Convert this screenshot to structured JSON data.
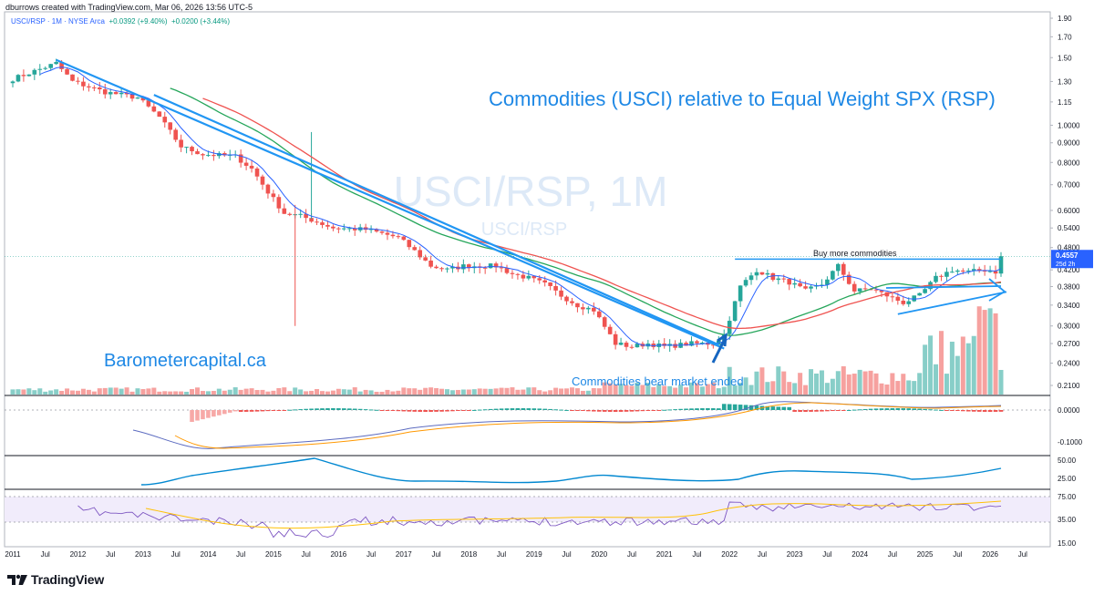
{
  "header": {
    "created_by": "dburrows created with TradingView.com, Mar 06, 2026 13:56 UTC-5",
    "legend_symbol": "USCI/RSP · 1M · NYSE Arca",
    "legend_change": "+0.0392 (+9.40%)",
    "legend_ma": "+0.0200 (+3.44%)"
  },
  "footer": {
    "brand": "TradingView",
    "logo_icon": "tradingview-logo-icon"
  },
  "colors": {
    "up": "#26a69a",
    "down": "#ef5350",
    "blue_ma": "#2962ff",
    "green_ma": "#26a65b",
    "red_ma": "#ef5350",
    "trendline": "#2196f3",
    "annotation": "#1e88e5"
  },
  "chart_data": {
    "type": "candlestick",
    "symbol": "USCI/RSP",
    "interval": "1M",
    "watermark": {
      "main": "USCI/RSP, 1M",
      "sub": "USCI/RSP"
    },
    "title": "Commodities (USCI) relative to Equal Weight SPX (RSP)",
    "brand_text": "Barometercapital.ca",
    "annotations": {
      "resistance": "Buy more commodities",
      "bottom": "Commodities bear market ended"
    },
    "y_scale": "log",
    "y_ticks": [
      "1.90",
      "1.70",
      "1.50",
      "1.30",
      "1.15",
      "1.0000",
      "0.9000",
      "0.8000",
      "0.7000",
      "0.6000",
      "0.5400",
      "0.4800",
      "0.4200",
      "0.3800",
      "0.3400",
      "0.3000",
      "0.2700",
      "0.2400",
      "0.2100"
    ],
    "last_price": "0.4557",
    "countdown": "25d 2h",
    "x_ticks": [
      "2011",
      "Jul",
      "2012",
      "Jul",
      "2013",
      "Jul",
      "2014",
      "Jul",
      "2015",
      "Jul",
      "2016",
      "Jul",
      "2017",
      "Jul",
      "2018",
      "Jul",
      "2019",
      "Jul",
      "2020",
      "Jul",
      "2021",
      "Jul",
      "2022",
      "Jul",
      "2023",
      "Jul",
      "2024",
      "Jul",
      "2025",
      "Jul",
      "2026",
      "Jul"
    ],
    "x_range": [
      "2011-01",
      "2026-03"
    ],
    "price_path": [
      [
        "2011-01",
        1.32
      ],
      [
        "2011-06",
        1.4
      ],
      [
        "2011-09",
        1.45
      ],
      [
        "2011-12",
        1.3
      ],
      [
        "2012-06",
        1.22
      ],
      [
        "2012-12",
        1.18
      ],
      [
        "2013-04",
        1.05
      ],
      [
        "2013-08",
        0.88
      ],
      [
        "2013-12",
        0.84
      ],
      [
        "2014-06",
        0.83
      ],
      [
        "2014-09",
        0.77
      ],
      [
        "2014-12",
        0.67
      ],
      [
        "2015-03",
        0.59
      ],
      [
        "2015-06",
        0.58
      ],
      [
        "2015-09",
        0.56
      ],
      [
        "2015-12",
        0.54
      ],
      [
        "2016-06",
        0.535
      ],
      [
        "2016-12",
        0.51
      ],
      [
        "2017-03",
        0.47
      ],
      [
        "2017-06",
        0.43
      ],
      [
        "2017-09",
        0.42
      ],
      [
        "2017-12",
        0.43
      ],
      [
        "2018-06",
        0.43
      ],
      [
        "2018-09",
        0.41
      ],
      [
        "2018-12",
        0.4
      ],
      [
        "2019-03",
        0.385
      ],
      [
        "2019-06",
        0.36
      ],
      [
        "2019-09",
        0.34
      ],
      [
        "2019-12",
        0.33
      ],
      [
        "2020-04",
        0.27
      ],
      [
        "2020-07",
        0.265
      ],
      [
        "2020-10",
        0.27
      ],
      [
        "2021-01",
        0.265
      ],
      [
        "2021-06",
        0.27
      ],
      [
        "2021-10",
        0.27
      ],
      [
        "2021-12",
        0.285
      ],
      [
        "2022-03",
        0.38
      ],
      [
        "2022-06",
        0.42
      ],
      [
        "2022-09",
        0.4
      ],
      [
        "2022-12",
        0.39
      ],
      [
        "2023-03",
        0.37
      ],
      [
        "2023-06",
        0.385
      ],
      [
        "2023-09",
        0.43
      ],
      [
        "2023-12",
        0.37
      ],
      [
        "2024-03",
        0.375
      ],
      [
        "2024-06",
        0.36
      ],
      [
        "2024-09",
        0.345
      ],
      [
        "2024-12",
        0.36
      ],
      [
        "2025-03",
        0.4
      ],
      [
        "2025-06",
        0.42
      ],
      [
        "2025-09",
        0.415
      ],
      [
        "2025-12",
        0.42
      ],
      [
        "2026-02",
        0.415
      ],
      [
        "2026-03",
        0.4557
      ]
    ],
    "indicators": {
      "macd_zero_tick": "0.0000",
      "macd_tick_low": "-0.1000",
      "line_ticks": [
        "50.00",
        "25.00"
      ],
      "rsi_ticks": [
        "75.00",
        "35.00",
        "15.00"
      ]
    }
  }
}
